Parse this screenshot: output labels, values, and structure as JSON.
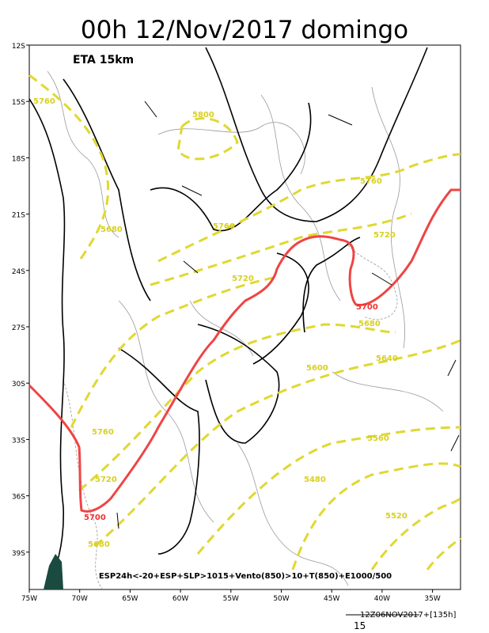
{
  "title": "00h 12/Nov/2017 domingo",
  "model": "ETA 15km",
  "lat_labels": [
    "12S",
    "15S",
    "18S",
    "21S",
    "24S",
    "27S",
    "30S",
    "33S",
    "36S",
    "39S"
  ],
  "lon_labels": [
    "75W",
    "70W",
    "65W",
    "60W",
    "55W",
    "50W",
    "45W",
    "40W",
    "35W"
  ],
  "contour_labels": {
    "yellow": [
      "5760",
      "5800",
      "5760",
      "5680",
      "5760",
      "5720",
      "5720",
      "5600",
      "5640",
      "5680",
      "5760",
      "5720",
      "5480",
      "5560",
      "5520",
      "5680"
    ],
    "red": [
      "5700",
      "5700"
    ]
  },
  "caption": "ESP24h<-20+ESP+SLP>1015+Vento(850)>10+T(850)+E1000/500",
  "footer": {
    "run": "12Z06NOV2017+[135h]",
    "scale": "15"
  }
}
